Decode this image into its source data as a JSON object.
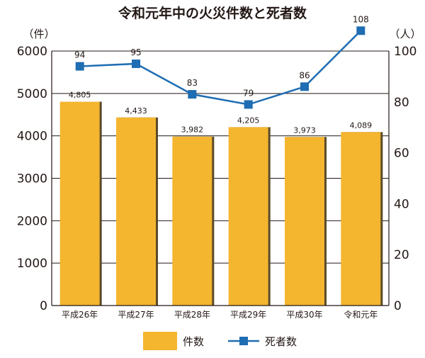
{
  "chart_data": {
    "type": "bar",
    "title": "令和元年中の火災件数と死者数",
    "categories": [
      "平成26年",
      "平成27年",
      "平成28年",
      "平成29年",
      "平成30年",
      "令和元年"
    ],
    "series": [
      {
        "name": "件数",
        "type": "bar",
        "axis": "left",
        "values": [
          4805,
          4433,
          3982,
          4205,
          3973,
          4089
        ],
        "labels": [
          "4,805",
          "4,433",
          "3,982",
          "4,205",
          "3,973",
          "4,089"
        ]
      },
      {
        "name": "死者数",
        "type": "line",
        "axis": "right",
        "values": [
          94,
          95,
          83,
          79,
          86,
          108
        ],
        "labels": [
          "94",
          "95",
          "83",
          "79",
          "86",
          "108"
        ]
      }
    ],
    "y_left": {
      "unit": "（件）",
      "ylim": [
        0,
        6000
      ],
      "ticks": [
        "0",
        "1000",
        "2000",
        "3000",
        "4000",
        "5000",
        "6000"
      ]
    },
    "y_right": {
      "unit": "（人）",
      "ylim": [
        0,
        100
      ],
      "ticks": [
        "0",
        "20",
        "40",
        "60",
        "80",
        "100"
      ]
    },
    "grid": true,
    "legend": "bottom",
    "colors": {
      "bar": "#F4B52F",
      "bar_shadow": "#5a4a2a",
      "line": "#1F6DB3",
      "text": "#231815",
      "grid": "#231815"
    }
  }
}
